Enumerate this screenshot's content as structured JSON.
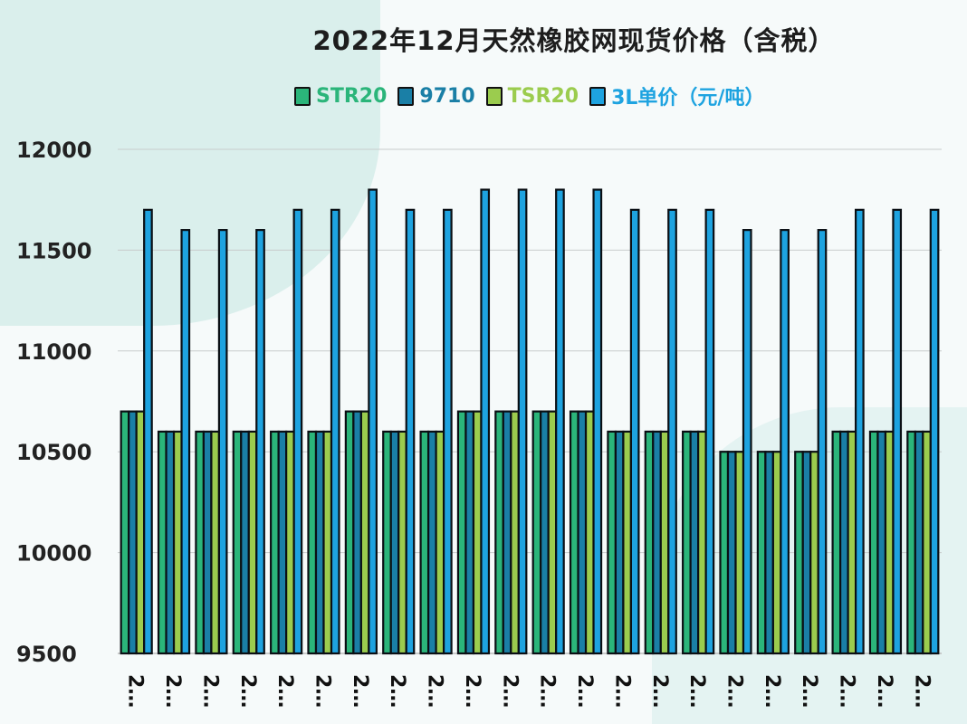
{
  "chart_data": {
    "type": "bar",
    "title": "2022年12月天然橡胶网现货价格（含税）",
    "xlabel": "",
    "ylabel": "",
    "ylim": [
      9500,
      12000
    ],
    "yticks": [
      "9500",
      "10000",
      "10500",
      "11000",
      "11500",
      "12000"
    ],
    "grid": true,
    "legend_position": "top",
    "categories": [
      "2…",
      "2…",
      "2…",
      "2…",
      "2…",
      "2…",
      "2…",
      "2…",
      "2…",
      "2…",
      "2…",
      "2…",
      "2…",
      "2…",
      "2…",
      "2…",
      "2…",
      "2…",
      "2…",
      "2…",
      "2…",
      "2…"
    ],
    "series": [
      {
        "name": "STR20",
        "color": "#2bb57a",
        "values": [
          10700,
          10600,
          10600,
          10600,
          10600,
          10600,
          10700,
          10600,
          10600,
          10700,
          10700,
          10700,
          10700,
          10600,
          10600,
          10600,
          10500,
          10500,
          10500,
          10600,
          10600,
          10600
        ]
      },
      {
        "name": "9710",
        "color": "#1a7fa6",
        "values": [
          10700,
          10600,
          10600,
          10600,
          10600,
          10600,
          10700,
          10600,
          10600,
          10700,
          10700,
          10700,
          10700,
          10600,
          10600,
          10600,
          10500,
          10500,
          10500,
          10600,
          10600,
          10600
        ]
      },
      {
        "name": "TSR20",
        "color": "#9bcc4e",
        "values": [
          10700,
          10600,
          10600,
          10600,
          10600,
          10600,
          10700,
          10600,
          10600,
          10700,
          10700,
          10700,
          10700,
          10600,
          10600,
          10600,
          10500,
          10500,
          10500,
          10600,
          10600,
          10600
        ]
      },
      {
        "name": "3L单价（元/吨）",
        "color": "#1ea3e0",
        "values": [
          11700,
          11600,
          11600,
          11600,
          11700,
          11700,
          11800,
          11700,
          11700,
          11800,
          11800,
          11800,
          11800,
          11700,
          11700,
          11700,
          11600,
          11600,
          11600,
          11700,
          11700,
          11700
        ]
      }
    ]
  }
}
